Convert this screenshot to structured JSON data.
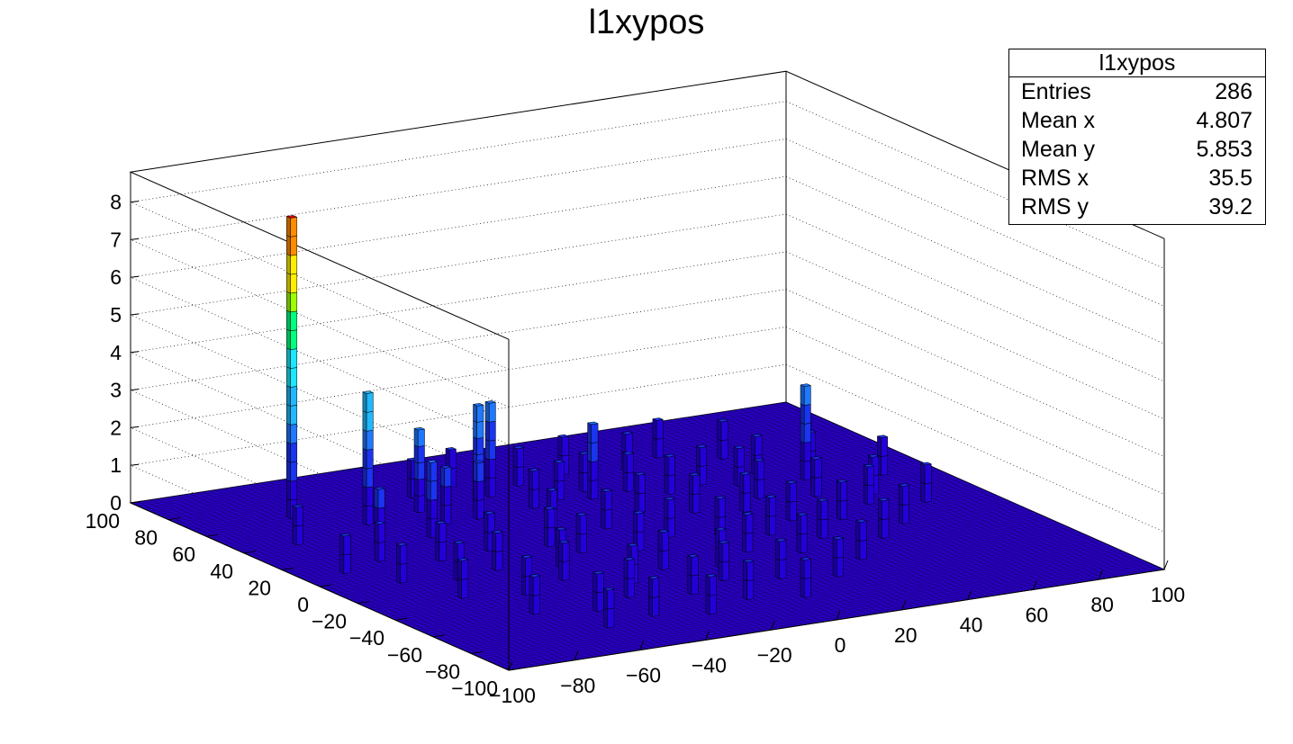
{
  "chart_data": {
    "type": "lego2d",
    "title": "l1xypos",
    "xlabel": "",
    "ylabel": "",
    "zlabel": "",
    "xlim": [
      -100,
      100
    ],
    "ylim": [
      -100,
      100
    ],
    "zlim": [
      0,
      8.8
    ],
    "x_ticks": [
      "−100",
      "−80",
      "−60",
      "−40",
      "−20",
      "0",
      "20",
      "40",
      "60",
      "80",
      "100"
    ],
    "y_ticks": [
      "−100",
      "−80",
      "−60",
      "−40",
      "−20",
      "0",
      "20",
      "40",
      "60",
      "80",
      "100"
    ],
    "z_ticks": [
      "0",
      "1",
      "2",
      "3",
      "4",
      "5",
      "6",
      "7",
      "8"
    ],
    "x_tick_values": [
      -100,
      -80,
      -60,
      -40,
      -20,
      0,
      20,
      40,
      60,
      80,
      100
    ],
    "y_tick_values": [
      -100,
      -80,
      -60,
      -40,
      -20,
      0,
      20,
      40,
      60,
      80,
      100
    ],
    "z_tick_values": [
      0,
      1,
      2,
      3,
      4,
      5,
      6,
      7,
      8
    ],
    "palette": [
      "#2400d8",
      "#1a34f0",
      "#1f78ff",
      "#20b8ff",
      "#19e8ff",
      "#00ff80",
      "#9eff00",
      "#ffee00",
      "#ff8c00",
      "#e00000"
    ],
    "bins": [
      {
        "x": -72,
        "y": 64,
        "z": 8
      },
      {
        "x": -58,
        "y": 48,
        "z": 3.5
      },
      {
        "x": -40,
        "y": 52,
        "z": 2.2
      },
      {
        "x": -22,
        "y": 52,
        "z": 2.6
      },
      {
        "x": -16,
        "y": 56,
        "z": 2.5
      },
      {
        "x": 6,
        "y": 40,
        "z": 2
      },
      {
        "x": 64,
        "y": 28,
        "z": 2.5
      },
      {
        "x": -66,
        "y": 28,
        "z": 1.5
      },
      {
        "x": -50,
        "y": 28,
        "z": 2
      },
      {
        "x": -40,
        "y": 38,
        "z": 1.5
      },
      {
        "x": -30,
        "y": 38,
        "z": 1.5
      },
      {
        "x": -12,
        "y": 40,
        "z": 1
      },
      {
        "x": -2,
        "y": 44,
        "z": 1
      },
      {
        "x": 8,
        "y": 48,
        "z": 1
      },
      {
        "x": 18,
        "y": 42,
        "z": 1
      },
      {
        "x": 26,
        "y": 34,
        "z": 1
      },
      {
        "x": 38,
        "y": 38,
        "z": 1
      },
      {
        "x": 46,
        "y": 32,
        "z": 1
      },
      {
        "x": 56,
        "y": 40,
        "z": 1
      },
      {
        "x": 70,
        "y": 36,
        "z": 1
      },
      {
        "x": -74,
        "y": 14,
        "z": 1
      },
      {
        "x": -60,
        "y": 6,
        "z": 1
      },
      {
        "x": -44,
        "y": 8,
        "z": 1
      },
      {
        "x": -28,
        "y": 4,
        "z": 1
      },
      {
        "x": -18,
        "y": 20,
        "z": 1
      },
      {
        "x": -6,
        "y": 12,
        "z": 1
      },
      {
        "x": 10,
        "y": 22,
        "z": 1
      },
      {
        "x": 22,
        "y": 14,
        "z": 1
      },
      {
        "x": 34,
        "y": 8,
        "z": 1
      },
      {
        "x": 44,
        "y": 18,
        "z": 1
      },
      {
        "x": 58,
        "y": 12,
        "z": 1
      },
      {
        "x": 72,
        "y": 6,
        "z": 1
      },
      {
        "x": 84,
        "y": 22,
        "z": 1
      },
      {
        "x": -80,
        "y": -8,
        "z": 1
      },
      {
        "x": -66,
        "y": -14,
        "z": 1
      },
      {
        "x": -52,
        "y": -10,
        "z": 1
      },
      {
        "x": -36,
        "y": -16,
        "z": 1
      },
      {
        "x": -24,
        "y": -6,
        "z": 1
      },
      {
        "x": -10,
        "y": -12,
        "z": 1
      },
      {
        "x": 4,
        "y": -4,
        "z": 1
      },
      {
        "x": 16,
        "y": -10,
        "z": 1
      },
      {
        "x": 28,
        "y": -16,
        "z": 1
      },
      {
        "x": 40,
        "y": -6,
        "z": 1
      },
      {
        "x": 52,
        "y": -12,
        "z": 1
      },
      {
        "x": 66,
        "y": -2,
        "z": 1
      },
      {
        "x": 80,
        "y": -8,
        "z": 1
      },
      {
        "x": -74,
        "y": -30,
        "z": 1
      },
      {
        "x": -58,
        "y": -36,
        "z": 1
      },
      {
        "x": -42,
        "y": -28,
        "z": 1
      },
      {
        "x": -28,
        "y": -40,
        "z": 1
      },
      {
        "x": -14,
        "y": -32,
        "z": 1
      },
      {
        "x": 0,
        "y": -38,
        "z": 1
      },
      {
        "x": 14,
        "y": -28,
        "z": 1
      },
      {
        "x": 26,
        "y": -36,
        "z": 1
      },
      {
        "x": 38,
        "y": -26,
        "z": 1
      },
      {
        "x": 52,
        "y": -34,
        "z": 1
      },
      {
        "x": 64,
        "y": -24,
        "z": 1
      },
      {
        "x": -66,
        "y": -54,
        "z": 1
      },
      {
        "x": -50,
        "y": -60,
        "z": 1
      },
      {
        "x": -36,
        "y": -52,
        "z": 1
      },
      {
        "x": -20,
        "y": -58,
        "z": 1
      },
      {
        "x": -6,
        "y": -50,
        "z": 1
      },
      {
        "x": 8,
        "y": -56,
        "z": 1
      },
      {
        "x": 22,
        "y": -62,
        "z": 1
      },
      {
        "x": 36,
        "y": -50,
        "z": 1
      },
      {
        "x": -56,
        "y": -76,
        "z": 1
      },
      {
        "x": -40,
        "y": -72,
        "z": 1
      },
      {
        "x": -26,
        "y": -78,
        "z": 1
      },
      {
        "x": -10,
        "y": -70,
        "z": 1
      },
      {
        "x": 4,
        "y": -76,
        "z": 1
      },
      {
        "x": -34,
        "y": 66,
        "z": 1
      },
      {
        "x": -20,
        "y": 70,
        "z": 1
      },
      {
        "x": -4,
        "y": 62,
        "z": 1
      },
      {
        "x": 12,
        "y": 66,
        "z": 1
      },
      {
        "x": 28,
        "y": 60,
        "z": 1
      },
      {
        "x": 42,
        "y": 68,
        "z": 1
      },
      {
        "x": 56,
        "y": 58,
        "z": 1
      },
      {
        "x": -84,
        "y": 40,
        "z": 1
      },
      {
        "x": -88,
        "y": 8,
        "z": 1
      }
    ]
  },
  "stats": {
    "title": "l1xypos",
    "rows": [
      {
        "key": "Entries",
        "value": "286"
      },
      {
        "key": "Mean x",
        "value": "4.807"
      },
      {
        "key": "Mean y",
        "value": "5.853"
      },
      {
        "key": "RMS x",
        "value": "35.5"
      },
      {
        "key": "RMS y",
        "value": "39.2"
      }
    ]
  }
}
